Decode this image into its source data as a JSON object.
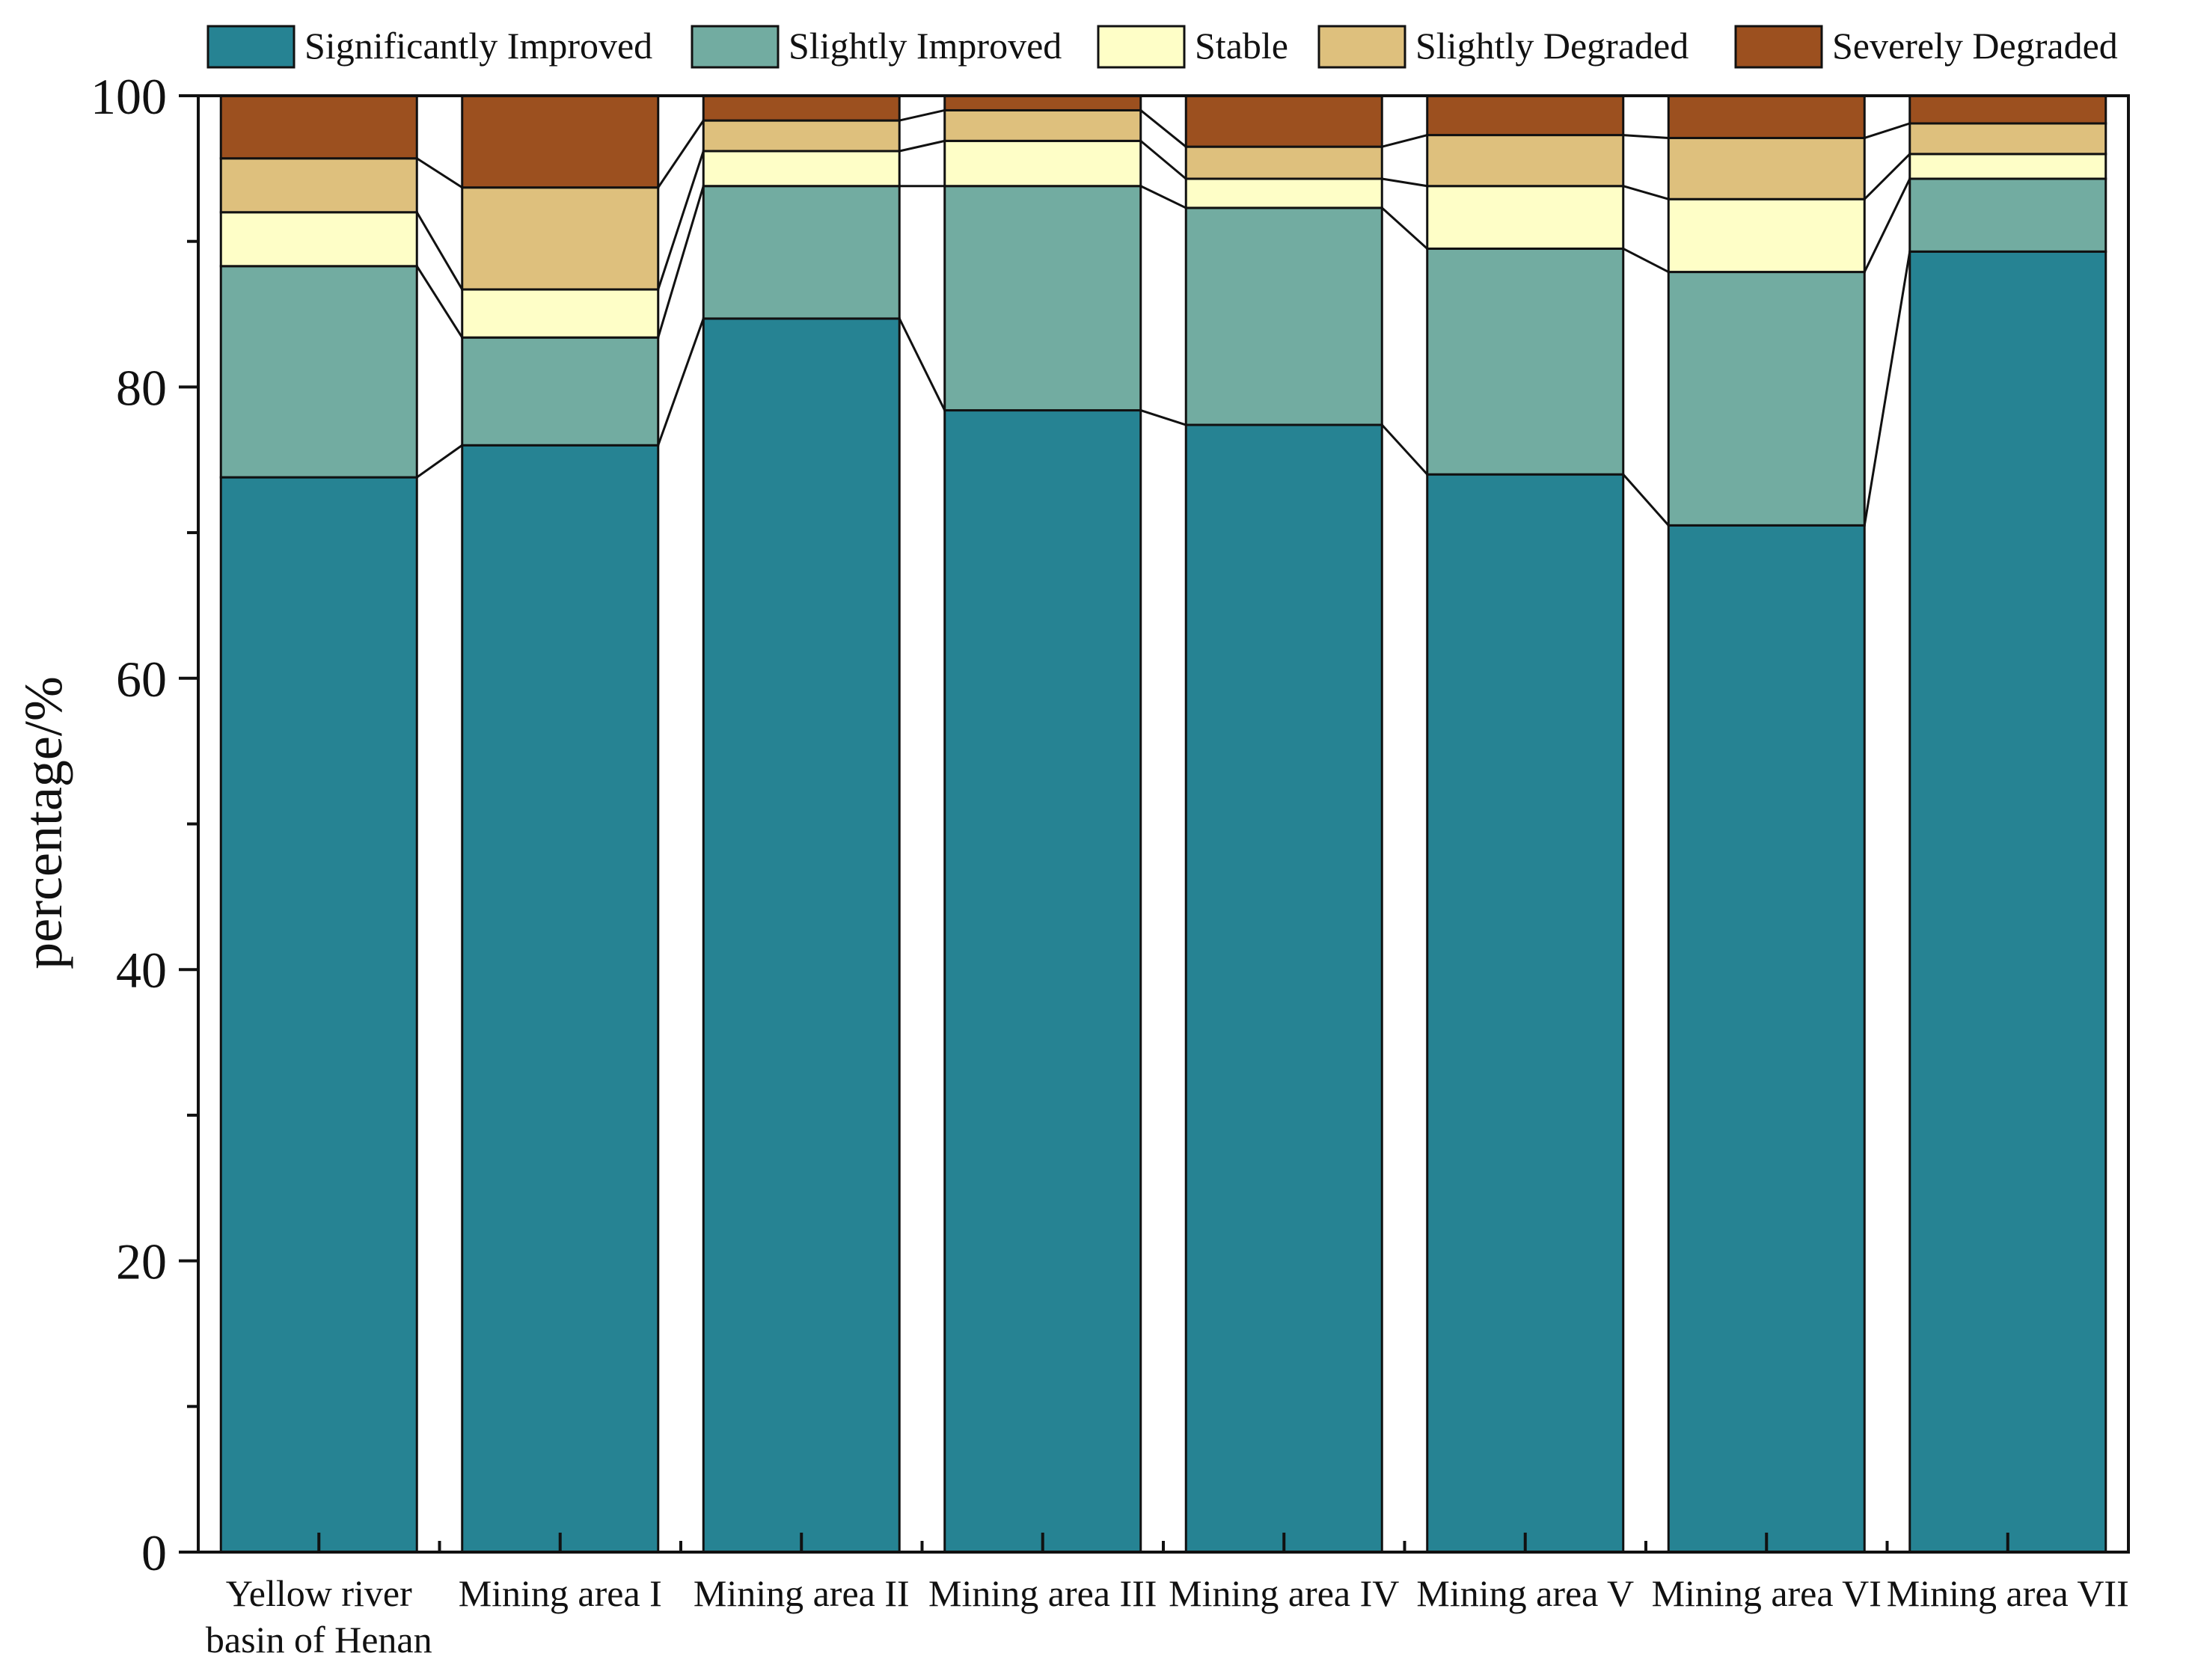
{
  "chart_data": {
    "type": "bar",
    "stacked": true,
    "title": "",
    "xlabel": "",
    "ylabel": "percentage/%",
    "ylim": [
      0,
      100
    ],
    "yticks": [
      "0",
      "20",
      "40",
      "60",
      "80",
      "100"
    ],
    "grid": false,
    "legend_position": "top",
    "categories": [
      [
        "Yellow river",
        "basin of Henan"
      ],
      [
        "Mining area I"
      ],
      [
        "Mining area II"
      ],
      [
        "Mining area III"
      ],
      [
        "Mining area IV"
      ],
      [
        "Mining area V"
      ],
      [
        "Mining area VI"
      ],
      [
        "Mining area VII"
      ]
    ],
    "series": [
      {
        "name": "Significantly Improved",
        "color": "#268393",
        "values": [
          73.8,
          76.0,
          84.7,
          78.4,
          77.4,
          74.0,
          70.5,
          89.3
        ]
      },
      {
        "name": "Slightly Improved",
        "color": "#72ACA1",
        "values": [
          14.5,
          7.4,
          9.1,
          15.4,
          14.9,
          15.5,
          17.4,
          5.0
        ]
      },
      {
        "name": "Stable",
        "color": "#FEFEC7",
        "values": [
          3.7,
          3.3,
          2.4,
          3.1,
          2.0,
          4.3,
          5.0,
          1.7
        ]
      },
      {
        "name": "Slightly Degraded",
        "color": "#DEC07D",
        "values": [
          3.7,
          7.0,
          2.1,
          2.1,
          2.2,
          3.5,
          4.2,
          2.1
        ]
      },
      {
        "name": "Severely Degraded",
        "color": "#9C501F",
        "values": [
          4.3,
          6.3,
          1.7,
          1.0,
          3.5,
          2.7,
          2.9,
          1.9
        ]
      }
    ]
  }
}
